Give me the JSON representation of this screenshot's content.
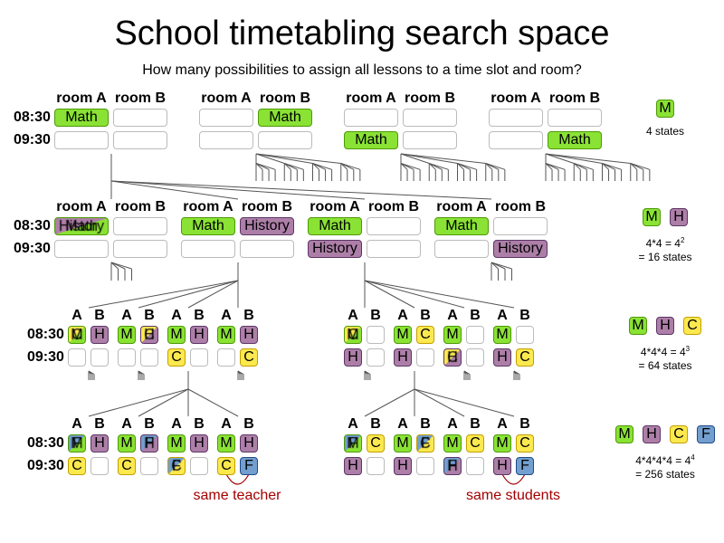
{
  "title": "School timetabling search space",
  "subtitle": "How many possibilities to assign all lessons to a time slot and room?",
  "times": [
    "08:30",
    "09:30"
  ],
  "room_headers": [
    "room A",
    "room B"
  ],
  "short_headers": [
    "A",
    "B"
  ],
  "colors": {
    "M": [
      "#8ae234",
      "#4e9a06"
    ],
    "H": [
      "#ad7fa8",
      "#5c3566"
    ],
    "C": [
      "#fce94f",
      "#c4a000"
    ],
    "F": [
      "#729fcf",
      "#204a87"
    ],
    "conflict_note": "#a40000"
  },
  "levels": [
    {
      "boards": [
        [
          [
            "Math",
            ""
          ],
          [
            "",
            ""
          ]
        ],
        [
          [
            "",
            "Math"
          ],
          [
            "",
            ""
          ]
        ],
        [
          [
            "",
            ""
          ],
          [
            "Math",
            ""
          ]
        ],
        [
          [
            "",
            ""
          ],
          [
            "",
            "Math"
          ]
        ]
      ],
      "legend": {
        "lessons": [
          "M"
        ],
        "formula": "",
        "result": "4 states"
      }
    },
    {
      "boards": [
        [
          [
            "History+Math",
            ""
          ],
          [
            "",
            ""
          ]
        ],
        [
          [
            "Math",
            "History"
          ],
          [
            "",
            ""
          ]
        ],
        [
          [
            "Math",
            ""
          ],
          [
            "History",
            ""
          ]
        ],
        [
          [
            "Math",
            ""
          ],
          [
            "",
            "History"
          ]
        ]
      ],
      "legend": {
        "lessons": [
          "M",
          "H"
        ],
        "formula": "4*4 = 4",
        "exponent": "2",
        "result": "= 16 states"
      }
    },
    {
      "boards": [
        [
          [
            "C+M",
            "H"
          ],
          [
            "",
            ""
          ]
        ],
        [
          [
            "M",
            "C+H"
          ],
          [
            "",
            ""
          ]
        ],
        [
          [
            "M",
            "H"
          ],
          [
            "C",
            ""
          ]
        ],
        [
          [
            "M",
            "H"
          ],
          [
            "",
            "C"
          ]
        ],
        [
          [
            "C+M",
            ""
          ],
          [
            "H",
            ""
          ]
        ],
        [
          [
            "M",
            "C"
          ],
          [
            "H",
            ""
          ]
        ],
        [
          [
            "M",
            ""
          ],
          [
            "C+H",
            ""
          ]
        ],
        [
          [
            "M",
            ""
          ],
          [
            "H",
            "C"
          ]
        ]
      ],
      "legend": {
        "lessons": [
          "M",
          "H",
          "C"
        ],
        "formula": "4*4*4 = 4",
        "exponent": "3",
        "result": "= 64 states"
      }
    },
    {
      "boards": [
        [
          [
            "F+M",
            "H"
          ],
          [
            "C",
            ""
          ]
        ],
        [
          [
            "M",
            "F+H"
          ],
          [
            "C",
            ""
          ]
        ],
        [
          [
            "M",
            "H"
          ],
          [
            "F+C",
            ""
          ]
        ],
        [
          [
            "M",
            "H"
          ],
          [
            "C",
            "F"
          ]
        ],
        [
          [
            "F+M",
            "C"
          ],
          [
            "H",
            ""
          ]
        ],
        [
          [
            "M",
            "F+C"
          ],
          [
            "H",
            ""
          ]
        ],
        [
          [
            "M",
            "C"
          ],
          [
            "F+H",
            ""
          ]
        ],
        [
          [
            "M",
            "C"
          ],
          [
            "H",
            "F"
          ]
        ]
      ],
      "legend": {
        "lessons": [
          "M",
          "H",
          "C",
          "F"
        ],
        "formula": "4*4*4*4 = 4",
        "exponent": "4",
        "result": "= 256 states"
      }
    }
  ],
  "notes": {
    "same_teacher": "same teacher",
    "same_students": "same students"
  }
}
